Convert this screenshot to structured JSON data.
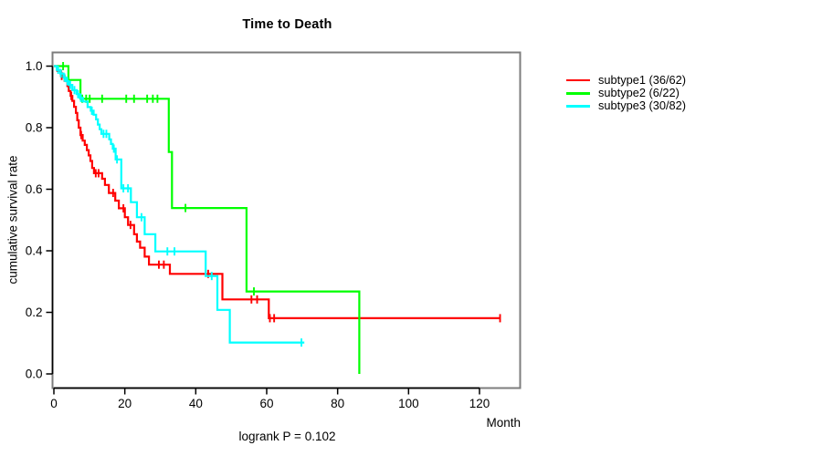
{
  "title": "Time to Death",
  "footnote": "logrank P = 0.102",
  "chart_data": {
    "type": "line",
    "subtype": "kaplan-meier-survival-steps",
    "title": "Time to Death",
    "xlabel": "Month",
    "ylabel": "cumulative survival rate",
    "annotation": "logrank P = 0.102",
    "x_ticks": [
      0,
      20,
      40,
      60,
      80,
      100,
      120
    ],
    "y_tick_labels": [
      "0.0",
      "0.2",
      "0.4",
      "0.6",
      "0.8",
      "1.0"
    ],
    "xlim": [
      0,
      131.5
    ],
    "ylim": [
      0.0,
      1.0
    ],
    "grid": false,
    "legend_position": "right-outside",
    "box_color": "#7d7d7d",
    "axis_color": "#000000",
    "series": [
      {
        "name": "subtype1",
        "label": "subtype1 (36/62)",
        "color": "#ff0000",
        "events": 36,
        "n": 62,
        "steps": [
          [
            0,
            1.0
          ],
          [
            1.0,
            0.984
          ],
          [
            2.0,
            0.968
          ],
          [
            3.0,
            0.952
          ],
          [
            3.8,
            0.935
          ],
          [
            4.2,
            0.919
          ],
          [
            4.7,
            0.903
          ],
          [
            5.2,
            0.887
          ],
          [
            5.7,
            0.868
          ],
          [
            6.2,
            0.848
          ],
          [
            6.6,
            0.824
          ],
          [
            7.0,
            0.8
          ],
          [
            7.5,
            0.776
          ],
          [
            8.1,
            0.758
          ],
          [
            8.7,
            0.744
          ],
          [
            9.3,
            0.727
          ],
          [
            9.8,
            0.71
          ],
          [
            10.3,
            0.692
          ],
          [
            10.8,
            0.669
          ],
          [
            11.3,
            0.652
          ],
          [
            13.6,
            0.634
          ],
          [
            14.4,
            0.614
          ],
          [
            15.5,
            0.588
          ],
          [
            17.3,
            0.563
          ],
          [
            18.3,
            0.538
          ],
          [
            20.0,
            0.509
          ],
          [
            20.9,
            0.484
          ],
          [
            22.6,
            0.454
          ],
          [
            23.4,
            0.43
          ],
          [
            24.3,
            0.41
          ],
          [
            25.6,
            0.381
          ],
          [
            26.8,
            0.355
          ],
          [
            32.7,
            0.325
          ],
          [
            47.5,
            0.242
          ],
          [
            60.6,
            0.181
          ]
        ],
        "end_time": 125.8,
        "censors": [
          [
            2.2,
            0.968
          ],
          [
            4.9,
            0.903
          ],
          [
            7.7,
            0.776
          ],
          [
            11.8,
            0.652
          ],
          [
            12.6,
            0.652
          ],
          [
            16.7,
            0.588
          ],
          [
            19.6,
            0.538
          ],
          [
            21.6,
            0.484
          ],
          [
            29.6,
            0.355
          ],
          [
            31.0,
            0.355
          ],
          [
            43.5,
            0.325
          ],
          [
            55.7,
            0.242
          ],
          [
            57.3,
            0.242
          ],
          [
            60.9,
            0.181
          ],
          [
            62.1,
            0.181
          ],
          [
            125.8,
            0.181
          ]
        ]
      },
      {
        "name": "subtype2",
        "label": "subtype2 (6/22)",
        "color": "#00ff00",
        "events": 6,
        "n": 22,
        "steps": [
          [
            0,
            1.0
          ],
          [
            4.1,
            0.955
          ],
          [
            7.5,
            0.894
          ],
          [
            32.4,
            0.721
          ],
          [
            33.3,
            0.539
          ],
          [
            54.3,
            0.268
          ],
          [
            86.1,
            0.0
          ]
        ],
        "end_time": 86.1,
        "censors": [
          [
            2.6,
            1.0
          ],
          [
            8.0,
            0.894
          ],
          [
            9.1,
            0.894
          ],
          [
            10.1,
            0.894
          ],
          [
            13.6,
            0.894
          ],
          [
            20.4,
            0.894
          ],
          [
            22.6,
            0.894
          ],
          [
            26.3,
            0.894
          ],
          [
            27.9,
            0.894
          ],
          [
            29.2,
            0.894
          ],
          [
            37.1,
            0.539
          ],
          [
            56.4,
            0.268
          ]
        ]
      },
      {
        "name": "subtype3",
        "label": "subtype3 (30/82)",
        "color": "#00ffff",
        "events": 30,
        "n": 82,
        "steps": [
          [
            0,
            1.0
          ],
          [
            0.8,
            0.988
          ],
          [
            1.8,
            0.976
          ],
          [
            2.7,
            0.963
          ],
          [
            3.4,
            0.951
          ],
          [
            4.2,
            0.939
          ],
          [
            5.2,
            0.922
          ],
          [
            6.4,
            0.909
          ],
          [
            7.3,
            0.897
          ],
          [
            8.2,
            0.885
          ],
          [
            9.5,
            0.867
          ],
          [
            10.4,
            0.855
          ],
          [
            11.2,
            0.842
          ],
          [
            11.9,
            0.827
          ],
          [
            12.4,
            0.81
          ],
          [
            12.9,
            0.795
          ],
          [
            13.4,
            0.78
          ],
          [
            15.6,
            0.762
          ],
          [
            16.1,
            0.747
          ],
          [
            16.6,
            0.732
          ],
          [
            17.4,
            0.697
          ],
          [
            19.0,
            0.603
          ],
          [
            21.7,
            0.558
          ],
          [
            23.4,
            0.509
          ],
          [
            25.6,
            0.454
          ],
          [
            28.6,
            0.398
          ],
          [
            42.8,
            0.318
          ],
          [
            46.1,
            0.208
          ],
          [
            49.6,
            0.102
          ]
        ],
        "end_time": 70.6,
        "censors": [
          [
            1.2,
            0.988
          ],
          [
            2.0,
            0.976
          ],
          [
            3.0,
            0.963
          ],
          [
            3.8,
            0.951
          ],
          [
            4.6,
            0.939
          ],
          [
            5.8,
            0.922
          ],
          [
            6.8,
            0.909
          ],
          [
            7.6,
            0.897
          ],
          [
            10.7,
            0.855
          ],
          [
            14.0,
            0.78
          ],
          [
            14.8,
            0.78
          ],
          [
            16.9,
            0.732
          ],
          [
            17.8,
            0.697
          ],
          [
            19.6,
            0.603
          ],
          [
            20.9,
            0.603
          ],
          [
            24.7,
            0.509
          ],
          [
            32.0,
            0.398
          ],
          [
            34.0,
            0.398
          ],
          [
            44.5,
            0.318
          ],
          [
            69.8,
            0.102
          ]
        ]
      }
    ]
  }
}
